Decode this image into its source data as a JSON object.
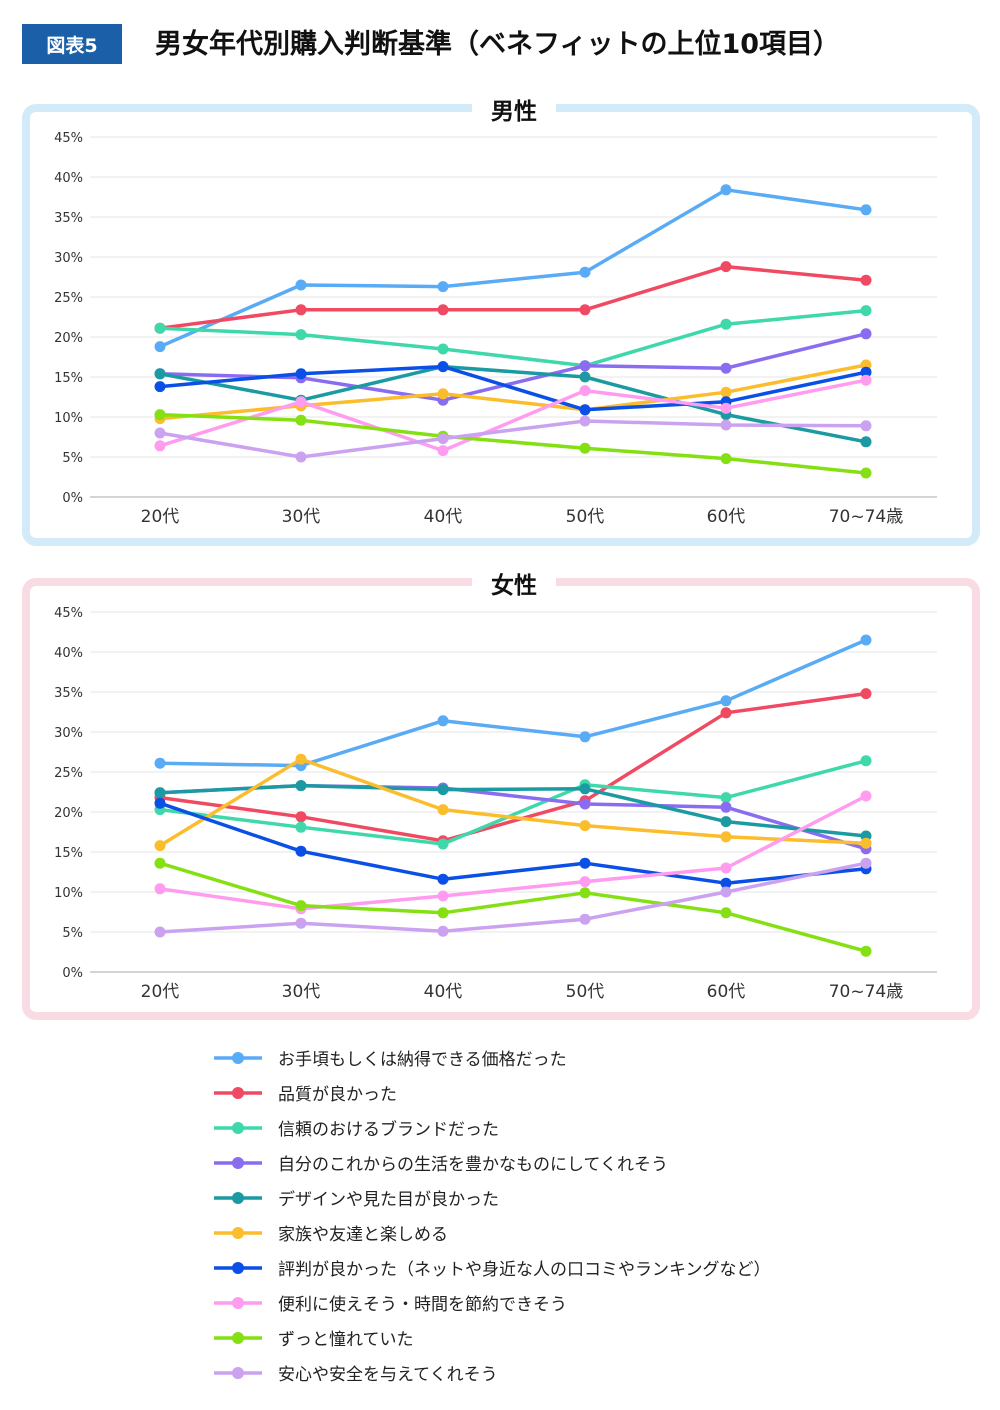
{
  "header": {
    "badge": "図表5",
    "title": "男女年代別購入判断基準（ベネフィットの上位10項目）"
  },
  "chart_data": [
    {
      "type": "line",
      "title": "男性",
      "categories": [
        "20代",
        "30代",
        "40代",
        "50代",
        "60代",
        "70~74歳"
      ],
      "ylim": [
        0,
        45
      ],
      "yticks": [
        "0%",
        "5%",
        "10%",
        "15%",
        "20%",
        "25%",
        "30%",
        "35%",
        "40%",
        "45%"
      ],
      "grid": true,
      "series": [
        {
          "name": "お手頃もしくは納得できる価格だった",
          "color": "#5aabf5",
          "values": [
            18.8,
            26.5,
            26.3,
            28.1,
            38.4,
            35.9
          ]
        },
        {
          "name": "品質が良かった",
          "color": "#f04a63",
          "values": [
            21.1,
            23.4,
            23.4,
            23.4,
            28.8,
            27.1
          ]
        },
        {
          "name": "信頼のおけるブランドだった",
          "color": "#3fd8aa",
          "values": [
            21.1,
            20.3,
            18.5,
            16.4,
            21.6,
            23.3
          ]
        },
        {
          "name": "自分のこれからの生活を豊かなものにしてくれそう",
          "color": "#8a6cf0",
          "values": [
            15.4,
            14.9,
            12.1,
            16.4,
            16.1,
            20.4
          ]
        },
        {
          "name": "デザインや見た目が良かった",
          "color": "#1b9aa2",
          "values": [
            15.4,
            12.1,
            16.3,
            15.0,
            10.3,
            6.9
          ]
        },
        {
          "name": "家族や友達と楽しめる",
          "color": "#fbbd2c",
          "values": [
            9.8,
            11.4,
            12.9,
            10.9,
            13.1,
            16.5
          ]
        },
        {
          "name": "評判が良かった（ネットや身近な人の口コミやランキングなど）",
          "color": "#0a4fe6",
          "values": [
            13.8,
            15.4,
            16.3,
            10.9,
            11.9,
            15.6
          ]
        },
        {
          "name": "便利に使えそう・時間を節約できそう",
          "color": "#ff9cf0",
          "values": [
            6.4,
            11.9,
            5.8,
            13.3,
            11.1,
            14.6
          ]
        },
        {
          "name": "ずっと憧れていた",
          "color": "#84e012",
          "values": [
            10.3,
            9.6,
            7.6,
            6.1,
            4.8,
            3.0
          ]
        },
        {
          "name": "安心や安全を与えてくれそう",
          "color": "#cba2ef",
          "values": [
            8.0,
            5.0,
            7.3,
            9.5,
            9.0,
            8.9
          ]
        }
      ]
    },
    {
      "type": "line",
      "title": "女性",
      "categories": [
        "20代",
        "30代",
        "40代",
        "50代",
        "60代",
        "70~74歳"
      ],
      "ylim": [
        0,
        45
      ],
      "yticks": [
        "0%",
        "5%",
        "10%",
        "15%",
        "20%",
        "25%",
        "30%",
        "35%",
        "40%",
        "45%"
      ],
      "grid": true,
      "series": [
        {
          "name": "お手頃もしくは納得できる価格だった",
          "color": "#5aabf5",
          "values": [
            26.1,
            25.8,
            31.4,
            29.4,
            33.9,
            41.5
          ]
        },
        {
          "name": "品質が良かった",
          "color": "#f04a63",
          "values": [
            21.8,
            19.4,
            16.4,
            21.4,
            32.4,
            34.8
          ]
        },
        {
          "name": "信頼のおけるブランドだった",
          "color": "#3fd8aa",
          "values": [
            20.3,
            18.1,
            16.0,
            23.4,
            21.8,
            26.4
          ]
        },
        {
          "name": "自分のこれからの生活を豊かなものにしてくれそう",
          "color": "#8a6cf0",
          "values": [
            22.4,
            23.3,
            23.0,
            21.0,
            20.6,
            15.4
          ]
        },
        {
          "name": "デザインや見た目が良かった",
          "color": "#1b9aa2",
          "values": [
            22.4,
            23.3,
            22.8,
            22.9,
            18.8,
            17.0
          ]
        },
        {
          "name": "家族や友達と楽しめる",
          "color": "#fbbd2c",
          "values": [
            15.8,
            26.6,
            20.3,
            18.3,
            16.9,
            16.1
          ]
        },
        {
          "name": "評判が良かった（ネットや身近な人の口コミやランキングなど）",
          "color": "#0a4fe6",
          "values": [
            21.1,
            15.1,
            11.6,
            13.6,
            11.1,
            12.9
          ]
        },
        {
          "name": "便利に使えそう・時間を節約できそう",
          "color": "#ff9cf0",
          "values": [
            10.4,
            7.9,
            9.5,
            11.3,
            13.0,
            22.0
          ]
        },
        {
          "name": "ずっと憧れていた",
          "color": "#84e012",
          "values": [
            13.6,
            8.3,
            7.4,
            9.9,
            7.4,
            2.6
          ]
        },
        {
          "name": "安心や安全を与えてくれそう",
          "color": "#cba2ef",
          "values": [
            5.0,
            6.1,
            5.1,
            6.6,
            10.0,
            13.6
          ]
        }
      ]
    }
  ]
}
